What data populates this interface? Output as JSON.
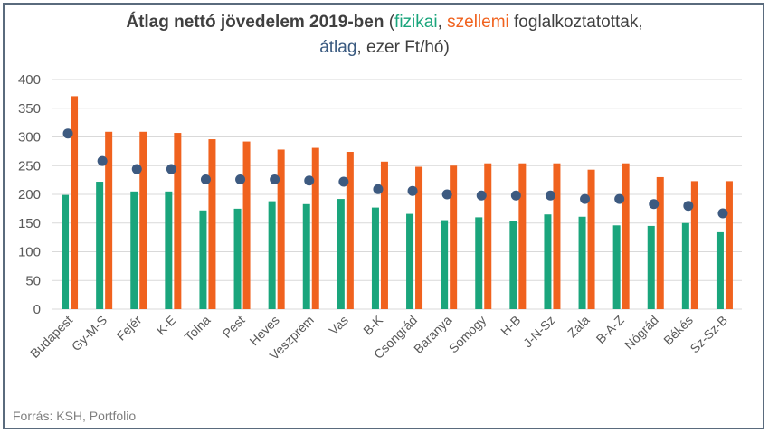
{
  "title": {
    "bold": "Átlag nettó jövedelem 2019-ben",
    "open_paren": " (",
    "fizikai": "fizikai",
    "comma1": ", ",
    "szellemi": "szellemi",
    "rest1": " foglalkoztatottak,",
    "atlag": "átlag",
    "rest2": ", ezer Ft/hó)"
  },
  "source": "Forrás: KSH, Portfolio",
  "colors": {
    "fizikai": "#1aa57c",
    "szellemi": "#f0621e",
    "atlag": "#3d5a80",
    "grid": "#d9d9d9",
    "axis_text": "#595959"
  },
  "chart_data": {
    "type": "bar",
    "title": "Átlag nettó jövedelem 2019-ben (fizikai, szellemi foglalkoztatottak, átlag, ezer Ft/hó)",
    "categories": [
      "Budapest",
      "Gy-M-S",
      "Fejér",
      "K-E",
      "Tolna",
      "Pest",
      "Heves",
      "Veszprém",
      "Vas",
      "B-K",
      "Csongrád",
      "Baranya",
      "Somogy",
      "H-B",
      "J-N-Sz",
      "Zala",
      "B-A-Z",
      "Nógrád",
      "Békés",
      "Sz-Sz-B"
    ],
    "series": [
      {
        "name": "fizikai",
        "type": "bar",
        "values": [
          199,
          222,
          205,
          205,
          172,
          175,
          188,
          183,
          192,
          177,
          166,
          155,
          160,
          153,
          165,
          161,
          146,
          145,
          150,
          134
        ]
      },
      {
        "name": "szellemi",
        "type": "bar",
        "values": [
          371,
          309,
          309,
          307,
          296,
          292,
          278,
          281,
          274,
          257,
          248,
          250,
          254,
          254,
          254,
          243,
          254,
          230,
          223,
          223
        ]
      },
      {
        "name": "átlag",
        "type": "scatter",
        "values": [
          306,
          258,
          244,
          244,
          226,
          226,
          226,
          224,
          222,
          209,
          206,
          200,
          198,
          198,
          198,
          192,
          192,
          183,
          180,
          167
        ]
      }
    ],
    "yticks": [
      0,
      50,
      100,
      150,
      200,
      250,
      300,
      350,
      400
    ],
    "ylim": [
      0,
      400
    ],
    "grid": true,
    "legend": "in title"
  }
}
